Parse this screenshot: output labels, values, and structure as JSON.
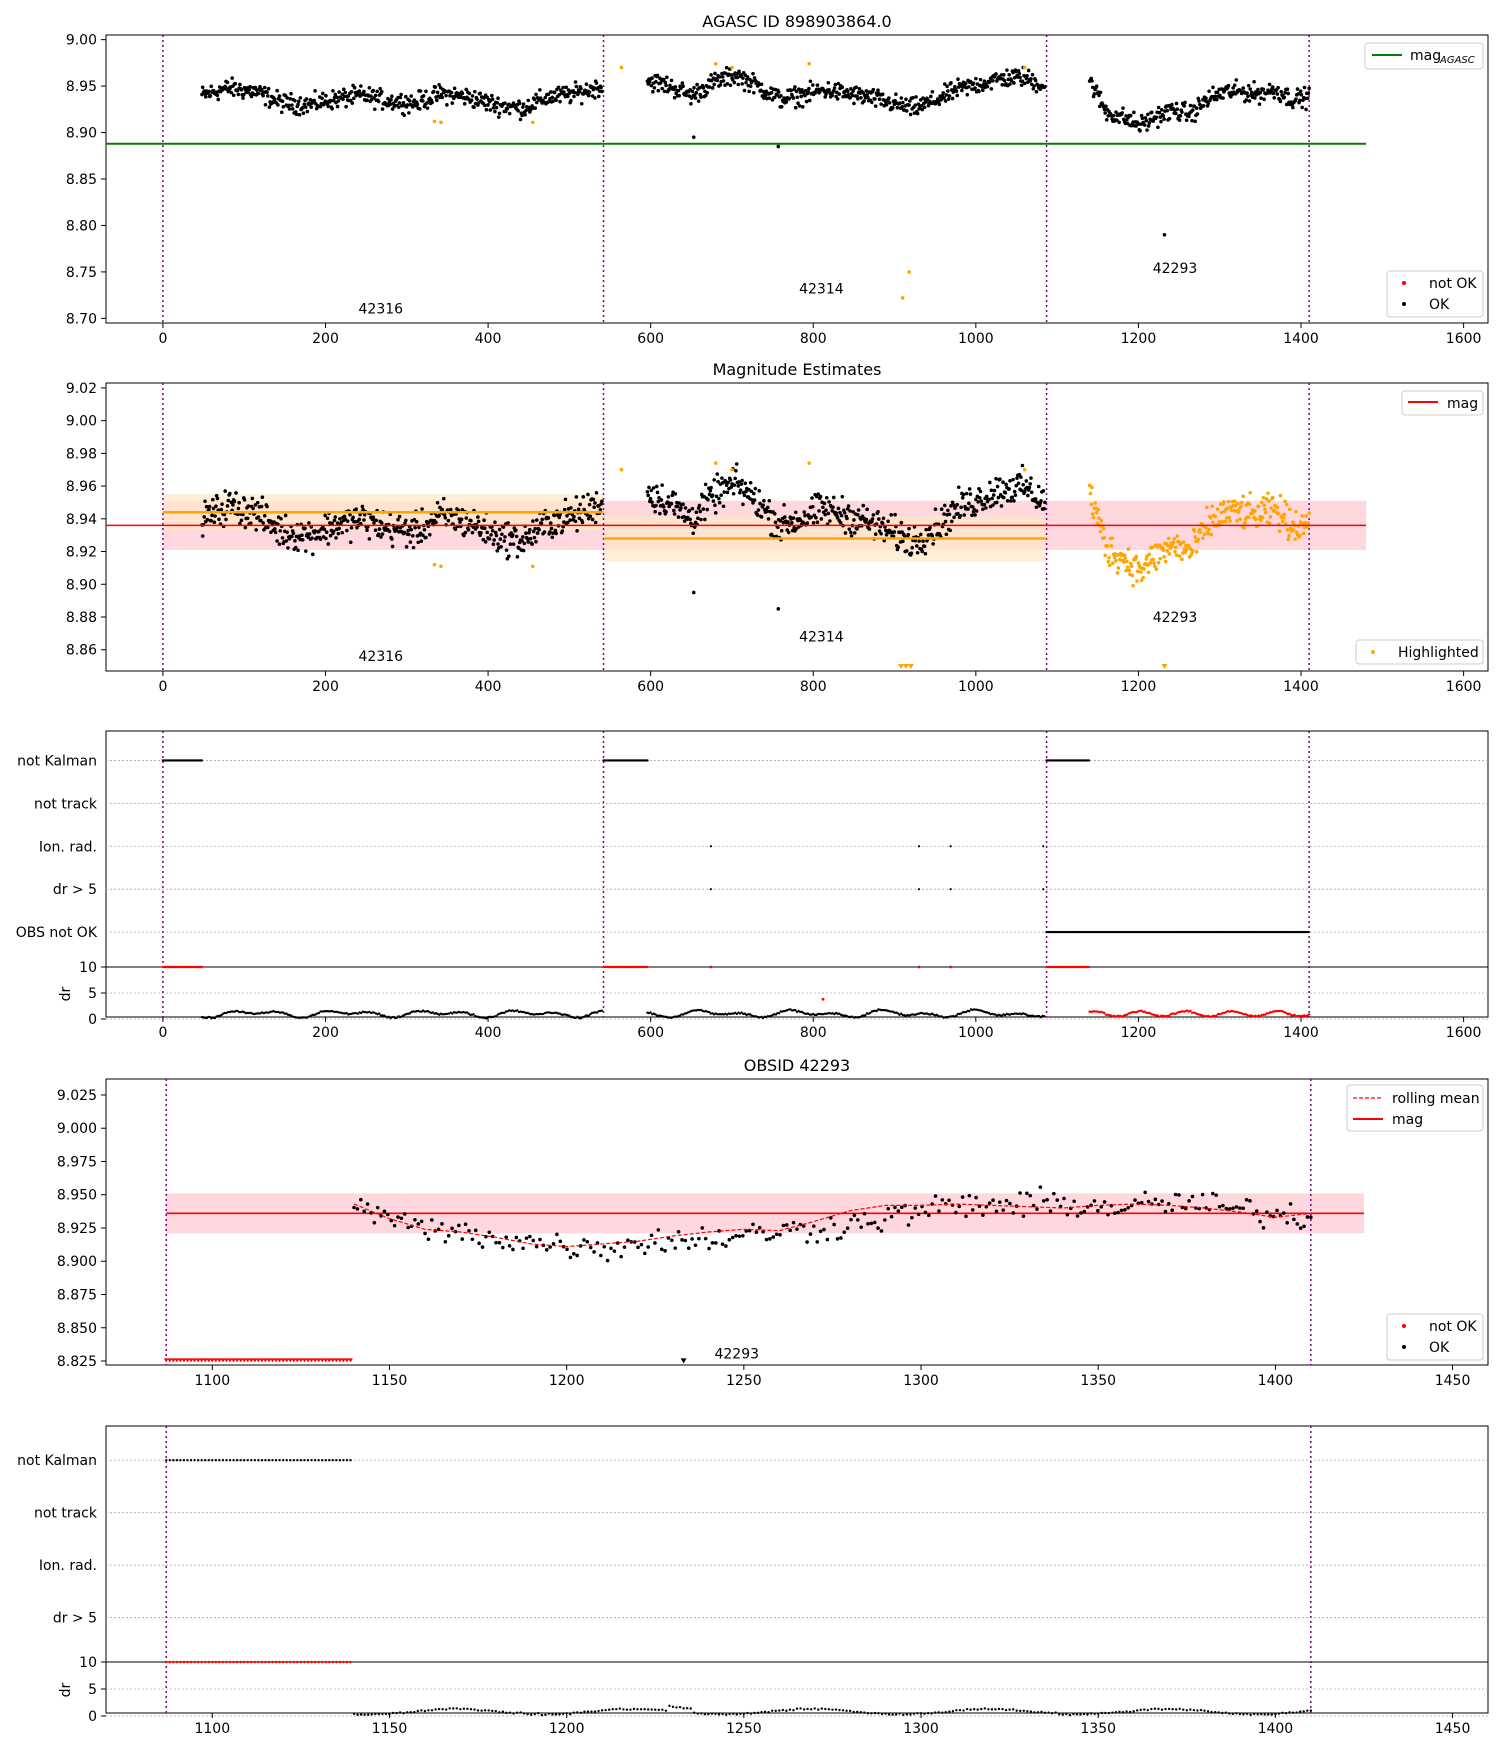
{
  "figure": {
    "panel1_title": "AGASC ID 898903864.0",
    "panel2_title": "Magnitude Estimates",
    "panel4_title": "OBSID 42293",
    "flag_labels": [
      "not Kalman",
      "not track",
      "Ion. rad.",
      "dr > 5",
      "OBS not OK"
    ],
    "flag_labels_zoom": [
      "not Kalman",
      "not track",
      "Ion. rad.",
      "dr > 5"
    ],
    "dr_label": "dr",
    "legend": {
      "mag_agasc": "mag",
      "mag_agasc_sub": "AGASC",
      "not_ok": "not OK",
      "ok": "OK",
      "mag": "mag",
      "highlighted": "Highlighted",
      "rolling_mean": "rolling mean"
    },
    "colors": {
      "ok": "#000000",
      "not_ok": "#ff0000",
      "highlighted": "#ffa500",
      "agasc_line": "#008000",
      "mag_line": "#ff0000",
      "obs_boundary": "#800080",
      "mean_band": "#ffd0d8",
      "obs_band": "#ffe8c8"
    }
  },
  "chart_data": [
    {
      "type": "scatter",
      "title": "AGASC ID 898903864.0",
      "xlim": [
        -70,
        1630
      ],
      "ylim": [
        8.695,
        9.005
      ],
      "xticks": [
        0,
        200,
        400,
        600,
        800,
        1000,
        1200,
        1400,
        1600
      ],
      "yticks": [
        8.7,
        8.75,
        8.8,
        8.85,
        8.9,
        8.95,
        9.0
      ],
      "agasc_mag": 8.888,
      "obs_boundaries": [
        0,
        542,
        1087,
        1410
      ],
      "obs_labels": [
        {
          "obsid": "42316",
          "x": 268,
          "y": 8.705
        },
        {
          "obsid": "42314",
          "x": 810,
          "y": 8.727
        },
        {
          "obsid": "42293",
          "x": 1245,
          "y": 8.749
        }
      ],
      "series": [
        {
          "name": "OK",
          "segments": [
            {
              "x0": 48,
              "x1": 540,
              "y": [
                8.94,
                8.948,
                8.944,
                8.932,
                8.93,
                8.936,
                8.94,
                8.934,
                8.932,
                8.942,
                8.938,
                8.93,
                8.926,
                8.938,
                8.942,
                8.95
              ]
            },
            {
              "x0": 596,
              "x1": 1085,
              "y": [
                8.956,
                8.95,
                8.94,
                8.954,
                8.962,
                8.95,
                8.936,
                8.94,
                8.946,
                8.942,
                8.938,
                8.932,
                8.926,
                8.934,
                8.946,
                8.952,
                8.958,
                8.96,
                8.95
              ]
            },
            {
              "x0": 1140,
              "x1": 1410,
              "y": [
                8.956,
                8.922,
                8.916,
                8.908,
                8.918,
                8.924,
                8.92,
                8.936,
                8.944,
                8.944,
                8.942,
                8.946,
                8.936,
                8.938
              ]
            }
          ],
          "outliers": [
            [
              653,
              8.895
            ],
            [
              757,
              8.885
            ],
            [
              1232,
              8.79
            ]
          ]
        },
        {
          "name": "not OK",
          "points": [
            [
              334,
              8.912
            ],
            [
              342,
              8.911
            ],
            [
              455,
              8.911
            ],
            [
              564,
              8.97
            ],
            [
              680,
              8.974
            ],
            [
              700,
              8.97
            ],
            [
              795,
              8.974
            ],
            [
              910,
              8.722
            ],
            [
              918,
              8.75
            ],
            [
              1060,
              8.97
            ]
          ]
        }
      ]
    },
    {
      "type": "scatter",
      "title": "Magnitude Estimates",
      "xlim": [
        -70,
        1630
      ],
      "ylim": [
        8.847,
        9.023
      ],
      "xticks": [
        0,
        200,
        400,
        600,
        800,
        1000,
        1200,
        1400,
        1600
      ],
      "yticks": [
        8.86,
        8.88,
        8.9,
        8.92,
        8.94,
        8.96,
        8.98,
        9.0,
        9.02
      ],
      "mag": 8.936,
      "mag_band": [
        8.921,
        8.951
      ],
      "obs_means": [
        {
          "x0": 0,
          "x1": 542,
          "mean": 8.944,
          "band": [
            8.933,
            8.955
          ]
        },
        {
          "x0": 542,
          "x1": 1087,
          "mean": 8.928,
          "band": [
            8.914,
            8.942
          ]
        }
      ],
      "obs_boundaries": [
        0,
        542,
        1087,
        1410
      ],
      "obs_labels": [
        {
          "obsid": "42316",
          "x": 268,
          "y": 8.853
        },
        {
          "obsid": "42314",
          "x": 810,
          "y": 8.865
        },
        {
          "obsid": "42293",
          "x": 1245,
          "y": 8.877
        }
      ],
      "series": [
        {
          "name": "OK",
          "segments": [
            {
              "x0": 48,
              "x1": 540,
              "y": [
                8.94,
                8.948,
                8.944,
                8.932,
                8.93,
                8.936,
                8.94,
                8.934,
                8.932,
                8.942,
                8.938,
                8.93,
                8.926,
                8.938,
                8.942,
                8.95
              ]
            },
            {
              "x0": 596,
              "x1": 1085,
              "y": [
                8.956,
                8.95,
                8.94,
                8.954,
                8.962,
                8.95,
                8.936,
                8.94,
                8.946,
                8.942,
                8.938,
                8.932,
                8.926,
                8.934,
                8.946,
                8.952,
                8.958,
                8.96,
                8.95
              ]
            }
          ],
          "outliers": [
            [
              653,
              8.895
            ],
            [
              757,
              8.885
            ]
          ]
        },
        {
          "name": "Highlighted",
          "segments": [
            {
              "x0": 1140,
              "x1": 1410,
              "y": [
                8.956,
                8.922,
                8.916,
                8.908,
                8.918,
                8.924,
                8.92,
                8.936,
                8.944,
                8.944,
                8.942,
                8.946,
                8.936,
                8.938
              ]
            }
          ],
          "points": [
            [
              334,
              8.912
            ],
            [
              342,
              8.911
            ],
            [
              455,
              8.911
            ],
            [
              564,
              8.97
            ],
            [
              680,
              8.974
            ],
            [
              700,
              8.97
            ],
            [
              795,
              8.974
            ],
            [
              1060,
              8.97
            ]
          ]
        }
      ]
    },
    {
      "type": "scatter",
      "title": "",
      "xlim": [
        -70,
        1630
      ],
      "xticks": [
        0,
        200,
        400,
        600,
        800,
        1000,
        1200,
        1400,
        1600
      ],
      "flags": [
        "not Kalman",
        "not track",
        "Ion. rad.",
        "dr > 5",
        "OBS not OK"
      ],
      "flag_spans": [
        {
          "flag": "not Kalman",
          "x0": 0,
          "x1": 48
        },
        {
          "flag": "not Kalman",
          "x0": 542,
          "x1": 596
        },
        {
          "flag": "not Kalman",
          "x0": 1087,
          "x1": 1140
        },
        {
          "flag": "OBS not OK",
          "x0": 1087,
          "x1": 1410
        }
      ],
      "flag_points": [
        {
          "flag": "Ion. rad.",
          "x": [
            674,
            930,
            969,
            1083
          ]
        },
        {
          "flag": "dr > 5",
          "x": [
            674,
            930,
            969,
            1083
          ]
        }
      ],
      "dr_ylim": [
        0,
        10
      ],
      "dr_yticks": [
        0,
        5,
        10
      ],
      "obs_boundaries": [
        0,
        542,
        1087,
        1410
      ]
    },
    {
      "type": "scatter",
      "title": "OBSID 42293",
      "xlim": [
        1070,
        1460
      ],
      "ylim": [
        8.822,
        9.037
      ],
      "xticks": [
        1100,
        1150,
        1200,
        1250,
        1300,
        1350,
        1400,
        1450
      ],
      "yticks": [
        8.825,
        8.85,
        8.875,
        8.9,
        8.925,
        8.95,
        8.975,
        9.0,
        9.025
      ],
      "mag": 8.936,
      "mag_band": [
        8.921,
        8.951
      ],
      "obs_boundaries": [
        1087,
        1410
      ],
      "obs_labels": [
        {
          "obsid": "42293",
          "x": 1248,
          "y": 8.827
        }
      ],
      "series": [
        {
          "name": "OK",
          "segments": [
            {
              "x0": 1140,
              "x1": 1410,
              "y": [
                8.944,
                8.93,
                8.922,
                8.92,
                8.915,
                8.912,
                8.91,
                8.915,
                8.916,
                8.918,
                8.922,
                8.924,
                8.928,
                8.934,
                8.94,
                8.942,
                8.942,
                8.944,
                8.94,
                8.942,
                8.944,
                8.94,
                8.936,
                8.932
              ]
            }
          ],
          "points": [
            [
              1233,
              8.824
            ]
          ]
        },
        {
          "name": "rolling mean",
          "line": [
            [
              1140,
              8.943
            ],
            [
              1150,
              8.932
            ],
            [
              1160,
              8.924
            ],
            [
              1170,
              8.922
            ],
            [
              1180,
              8.918
            ],
            [
              1190,
              8.913
            ],
            [
              1200,
              8.911
            ],
            [
              1210,
              8.913
            ],
            [
              1220,
              8.915
            ],
            [
              1230,
              8.919
            ],
            [
              1240,
              8.922
            ],
            [
              1250,
              8.924
            ],
            [
              1260,
              8.923
            ],
            [
              1270,
              8.93
            ],
            [
              1280,
              8.938
            ],
            [
              1290,
              8.942
            ],
            [
              1300,
              8.942
            ],
            [
              1310,
              8.943
            ],
            [
              1320,
              8.942
            ],
            [
              1330,
              8.941
            ],
            [
              1340,
              8.94
            ],
            [
              1350,
              8.942
            ],
            [
              1360,
              8.943
            ],
            [
              1370,
              8.942
            ],
            [
              1380,
              8.94
            ],
            [
              1390,
              8.937
            ],
            [
              1400,
              8.933
            ],
            [
              1410,
              8.936
            ]
          ]
        },
        {
          "name": "not OK",
          "x0": 1087,
          "x1": 1139,
          "y": 8.824
        }
      ]
    },
    {
      "type": "scatter",
      "title": "",
      "xlim": [
        1070,
        1460
      ],
      "xticks": [
        1100,
        1150,
        1200,
        1250,
        1300,
        1350,
        1400,
        1450
      ],
      "flags": [
        "not Kalman",
        "not track",
        "Ion. rad.",
        "dr > 5"
      ],
      "flag_spans": [
        {
          "flag": "not Kalman",
          "x0": 1087,
          "x1": 1139
        }
      ],
      "dr_ylim": [
        0,
        10
      ],
      "dr_yticks": [
        0,
        5,
        10
      ],
      "obs_boundaries": [
        1087,
        1410
      ]
    }
  ]
}
